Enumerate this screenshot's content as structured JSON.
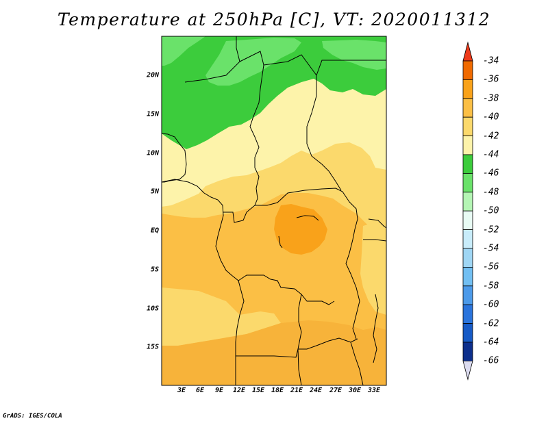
{
  "title": "Temperature at 250hPa [C], VT: 2020011312",
  "credit": "GrADS: IGES/COLA",
  "lat_labels": [
    "20N",
    "15N",
    "10N",
    "5N",
    "EQ",
    "5S",
    "10S",
    "15S"
  ],
  "lon_labels": [
    "3E",
    "6E",
    "9E",
    "12E",
    "15E",
    "18E",
    "21E",
    "24E",
    "27E",
    "30E",
    "33E"
  ],
  "colorbar": {
    "labels": [
      "-34",
      "-36",
      "-38",
      "-40",
      "-42",
      "-44",
      "-46",
      "-48",
      "-50",
      "-52",
      "-54",
      "-56",
      "-58",
      "-60",
      "-62",
      "-64",
      "-66"
    ],
    "colors": [
      "#ee3a1a",
      "#f06a00",
      "#f9a21a",
      "#fbbf45",
      "#fbd96c",
      "#fdf3aa",
      "#3ccc3c",
      "#6ae26a",
      "#b4f5b4",
      "#e8fbf4",
      "#c8ecfa",
      "#9fd6f4",
      "#72bff2",
      "#4c9ae9",
      "#2a74dc",
      "#165ac6",
      "#0d2f8c",
      "#0a1a6e",
      "#dcdcf0"
    ]
  },
  "legend_colors": {
    "green_-44_-46": "#3ccc3c",
    "light_green_-46_-48": "#6ae26a",
    "yellow_-42_-44": "#fdf3aa",
    "gold_-40_-42": "#fbd96c",
    "orange_-38_-40": "#fbbf45",
    "deep_orange_-36_-38": "#f9a21a"
  }
}
